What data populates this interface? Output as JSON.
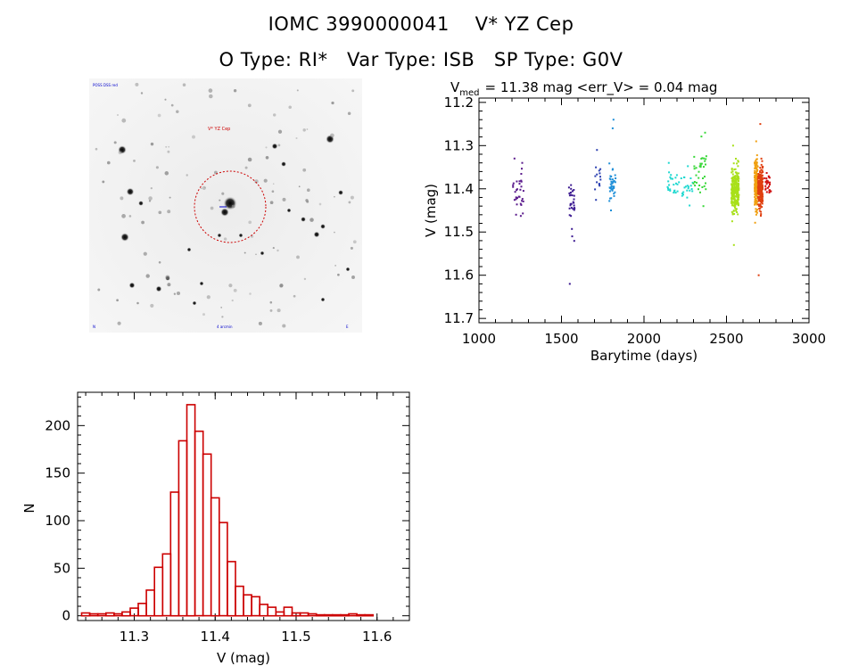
{
  "title_line1": {
    "catalog": "IOMC 3990000041",
    "object": "V* YZ Cep"
  },
  "title_line2": {
    "otype": "O Type: RI*",
    "vartype": "Var Type: ISB",
    "sptype": "SP Type: G0V"
  },
  "sky_image": {
    "label_top_left": "POSS DSS red",
    "label_target": "V* YZ Cep",
    "label_bottom_left": "N",
    "label_bottom_center": "4 arcmin",
    "label_bottom_right": "E",
    "circle_color": "#cc0000"
  },
  "chart_data": [
    {
      "type": "scatter",
      "name": "light-curve",
      "title_prefix": "V",
      "title_sub": "med",
      "title_rest": "= 11.38 mag <err_V> = 0.04 mag",
      "xlabel": "Barytime (days)",
      "ylabel": "V (mag)",
      "xlim": [
        1000,
        3000
      ],
      "ylim": [
        11.71,
        11.19
      ],
      "xticks": [
        1000,
        1500,
        2000,
        2500,
        3000
      ],
      "xtick_labels": [
        "1000",
        "1500",
        "2000",
        "2500",
        "3000"
      ],
      "yticks": [
        11.2,
        11.3,
        11.4,
        11.5,
        11.6,
        11.7
      ],
      "ytick_labels": [
        "11.2",
        "11.3",
        "11.4",
        "11.5",
        "11.6",
        "11.7"
      ],
      "groups": [
        {
          "x_range": [
            1205,
            1270
          ],
          "y_mean": 11.41,
          "y_spread": 0.035,
          "n": 30,
          "color": "#5a1a8c",
          "extra": [
            [
              1215,
              11.33
            ],
            [
              1225,
              11.46
            ],
            [
              1262,
              11.34
            ]
          ]
        },
        {
          "x_range": [
            1545,
            1580
          ],
          "y_mean": 11.44,
          "y_spread": 0.04,
          "n": 28,
          "color": "#3a1890",
          "extra": [
            [
              1550,
              11.62
            ],
            [
              1565,
              11.51
            ],
            [
              1558,
              11.4
            ]
          ]
        },
        {
          "x_range": [
            1700,
            1740
          ],
          "y_mean": 11.37,
          "y_spread": 0.03,
          "n": 14,
          "color": "#2b3fb0",
          "extra": [
            [
              1715,
              11.31
            ]
          ]
        },
        {
          "x_range": [
            1790,
            1830
          ],
          "y_mean": 11.39,
          "y_spread": 0.02,
          "n": 40,
          "color": "#1f8fd8",
          "extra": [
            [
              1815,
              11.24
            ],
            [
              1810,
              11.26
            ],
            [
              1800,
              11.45
            ]
          ]
        },
        {
          "x_range": [
            2140,
            2300
          ],
          "y_mean": 11.39,
          "y_spread": 0.025,
          "n": 45,
          "color": "#1fd8d0",
          "extra": [
            [
              2150,
              11.34
            ]
          ]
        },
        {
          "x_range": [
            2300,
            2380
          ],
          "y_mean": 11.36,
          "y_spread": 0.04,
          "n": 35,
          "color": "#3ad83a",
          "extra": [
            [
              2370,
              11.27
            ],
            [
              2360,
              11.44
            ]
          ]
        },
        {
          "x_range": [
            2530,
            2575
          ],
          "y_mean": 11.4,
          "y_spread": 0.035,
          "n": 260,
          "color": "#a8e01a",
          "extra": [
            [
              2545,
              11.53
            ],
            [
              2540,
              11.3
            ]
          ]
        },
        {
          "x_range": [
            2670,
            2690
          ],
          "y_mean": 11.39,
          "y_spread": 0.04,
          "n": 160,
          "color": "#f0a010",
          "extra": [
            [
              2680,
              11.29
            ]
          ]
        },
        {
          "x_range": [
            2690,
            2720
          ],
          "y_mean": 11.4,
          "y_spread": 0.035,
          "n": 200,
          "color": "#e04010",
          "extra": [
            [
              2695,
              11.6
            ],
            [
              2705,
              11.25
            ]
          ]
        },
        {
          "x_range": [
            2730,
            2770
          ],
          "y_mean": 11.39,
          "y_spread": 0.02,
          "n": 30,
          "color": "#d01010",
          "extra": []
        }
      ]
    },
    {
      "type": "bar",
      "name": "histogram",
      "xlabel": "V (mag)",
      "ylabel": "N",
      "xlim": [
        11.23,
        11.64
      ],
      "ylim": [
        -5,
        235
      ],
      "xticks": [
        11.3,
        11.4,
        11.5,
        11.6
      ],
      "xtick_labels": [
        "11.3",
        "11.4",
        "11.5",
        "11.6"
      ],
      "yticks": [
        0,
        50,
        100,
        150,
        200
      ],
      "ytick_labels": [
        "0",
        "50",
        "100",
        "150",
        "200"
      ],
      "bin_start": 11.235,
      "bin_width": 0.01,
      "values": [
        3,
        2,
        2,
        3,
        2,
        4,
        8,
        13,
        27,
        51,
        65,
        130,
        184,
        222,
        194,
        170,
        124,
        98,
        57,
        31,
        22,
        20,
        12,
        9,
        4,
        9,
        3,
        3,
        2,
        1,
        1,
        1,
        1,
        2,
        1,
        1
      ],
      "bar_color": "#cc0000"
    }
  ]
}
